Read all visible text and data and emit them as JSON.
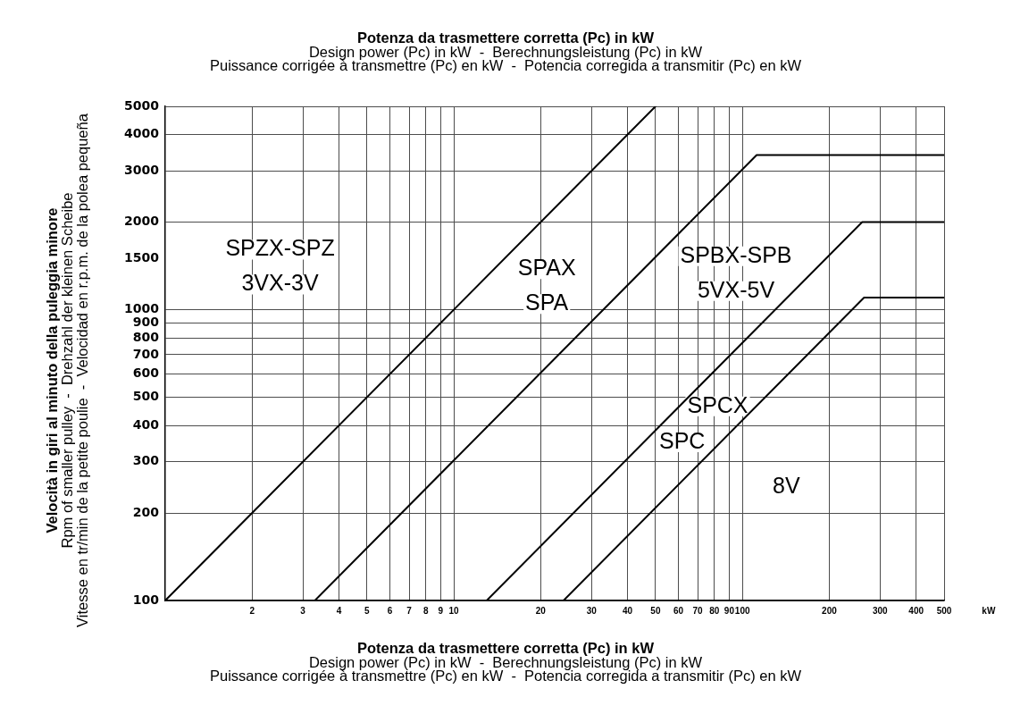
{
  "chart_data": {
    "type": "line",
    "title": "Potenza da trasmettere corretta (Pc) in kW",
    "subtitle": "Design power (Pc) in kW  -  Berechnungsleistung (Pc) in kW\nPuissance corrigée à transmettre (Pc) en kW  -  Potencia corregida a transmitir (Pc) en kW",
    "xlabel": "Potenza da trasmettere corretta (Pc) in kW\nDesign power (Pc) in kW  -  Berechnungsleistung (Pc) in kW\nPuissance corrigée à transmettre (Pc) en kW  -  Potencia corregida a transmitir (Pc) en kW",
    "ylabel": "Velocità in giri al minuto della puleggia minore\nRpm of smaller pulley  -  Drehzahl der kleinen Scheibe\nVitesse en tr/min de la petite poulie  -  Velocidad en r.p.m. de la polea pequeña",
    "series": [
      {
        "color": "#000000",
        "x": [
          1,
          50
        ],
        "values": [
          100,
          5000
        ]
      },
      {
        "color": "#000000",
        "x": [
          3.3,
          112,
          500
        ],
        "values": [
          100,
          3400,
          3400
        ]
      },
      {
        "color": "#000000",
        "x": [
          13,
          260,
          500
        ],
        "values": [
          100,
          2000,
          2000
        ]
      },
      {
        "color": "#000000",
        "x": [
          24,
          264,
          500
        ],
        "values": [
          100,
          1100,
          1100
        ]
      }
    ],
    "log": "xy",
    "xlim": [
      1,
      500
    ],
    "ylim": [
      100,
      5000
    ],
    "xticks": [
      2,
      3,
      4,
      5,
      6,
      7,
      8,
      9,
      10,
      20,
      30,
      40,
      50,
      60,
      70,
      80,
      90,
      100,
      200,
      300,
      400,
      500
    ],
    "yticks": [
      100,
      200,
      300,
      400,
      500,
      600,
      700,
      800,
      900,
      1000,
      1500,
      2000,
      3000,
      4000,
      5000
    ],
    "grid": true,
    "annotations": [
      "SPZX-SPZ\n3VX-3V",
      "SPAX\nSPA",
      "SPBX-SPB\n5VX-5V",
      "SPCX",
      "SPC",
      "8V",
      "kW"
    ]
  }
}
